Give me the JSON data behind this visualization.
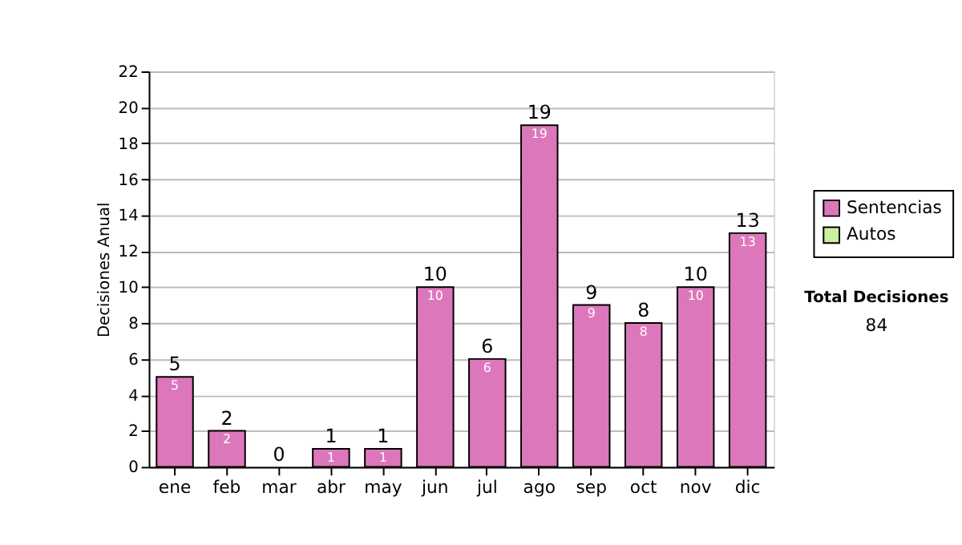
{
  "chart_data": {
    "type": "bar",
    "stacked": true,
    "ylabel": "Decisiones Anual",
    "categories": [
      "ene",
      "feb",
      "mar",
      "abr",
      "may",
      "jun",
      "jul",
      "ago",
      "sep",
      "oct",
      "nov",
      "dic"
    ],
    "series": [
      {
        "name": "Sentencias",
        "color": "#dd77bb",
        "values": [
          5,
          2,
          0,
          1,
          1,
          10,
          6,
          19,
          9,
          8,
          10,
          13
        ],
        "value_labels": [
          "5",
          "2",
          null,
          "1",
          "1",
          "10",
          "6",
          "19",
          "9",
          "8",
          "10",
          "13"
        ]
      },
      {
        "name": "Autos",
        "color": "#cceea0",
        "values": [
          0,
          0,
          0,
          0,
          0,
          0,
          0,
          0,
          0,
          0,
          0,
          0
        ]
      }
    ],
    "totals": [
      "5",
      "2",
      "0",
      "1",
      "1",
      "10",
      "6",
      "19",
      "9",
      "8",
      "10",
      "13"
    ],
    "ylim": [
      0,
      22
    ],
    "yticks": [
      0,
      2,
      4,
      6,
      8,
      10,
      12,
      14,
      16,
      18,
      20,
      22
    ],
    "grid": "y",
    "legend": "right",
    "annotations": [
      "Total Decisiones",
      "84"
    ]
  }
}
